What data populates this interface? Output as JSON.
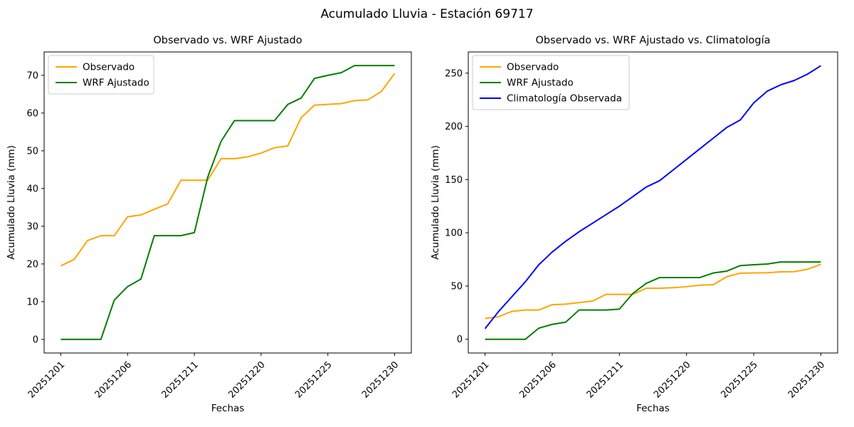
{
  "figure": {
    "title": "Acumulado Lluvia - Estación 69717",
    "background_color": "#ffffff",
    "text_color": "#000000"
  },
  "chart_data": [
    {
      "type": "line",
      "title": "Observado vs. WRF Ajustado",
      "xlabel": "Fechas",
      "ylabel": "Acumulado Lluvia (mm)",
      "grid": false,
      "legend_position": "upper left",
      "xlim": [
        -1.25,
        26.25
      ],
      "ylim": [
        -3.6,
        76.2
      ],
      "x_ticks": {
        "positions": [
          0,
          5,
          10,
          15,
          20,
          25
        ],
        "labels": [
          "20251201",
          "20251206",
          "20251211",
          "20251220",
          "20251225",
          "20251230"
        ],
        "rotation": 45
      },
      "y_ticks": [
        0,
        10,
        20,
        30,
        40,
        50,
        60,
        70
      ],
      "series": [
        {
          "name": "Observado",
          "color": "#ffa500",
          "values": [
            19.5,
            21.2,
            26.2,
            27.5,
            27.5,
            32.5,
            33.0,
            34.5,
            35.9,
            42.2,
            42.2,
            42.2,
            47.9,
            47.9,
            48.4,
            49.4,
            50.8,
            51.3,
            58.8,
            62.1,
            62.3,
            62.5,
            63.3,
            63.5,
            65.7,
            70.5
          ]
        },
        {
          "name": "WRF Ajustado",
          "color": "#008000",
          "values": [
            0,
            0,
            0,
            0,
            10.4,
            14.0,
            16.0,
            27.5,
            27.5,
            27.5,
            28.3,
            43.0,
            52.5,
            58.0,
            58.0,
            58.0,
            58.0,
            62.3,
            64.0,
            69.2,
            70.0,
            70.7,
            72.6,
            72.6,
            72.6,
            72.6
          ]
        }
      ]
    },
    {
      "type": "line",
      "title": "Observado vs. WRF Ajustado vs. Climatología",
      "xlabel": "Fechas",
      "ylabel": "Acumulado Lluvia (mm)",
      "grid": false,
      "legend_position": "upper left",
      "xlim": [
        -1.25,
        26.25
      ],
      "ylim": [
        -12.9,
        269.9
      ],
      "x_ticks": {
        "positions": [
          0,
          5,
          10,
          15,
          20,
          25
        ],
        "labels": [
          "20251201",
          "20251206",
          "20251211",
          "20251220",
          "20251225",
          "20251230"
        ],
        "rotation": 45
      },
      "y_ticks": [
        0,
        50,
        100,
        150,
        200,
        250
      ],
      "series": [
        {
          "name": "Observado",
          "color": "#ffa500",
          "values": [
            19.5,
            21.2,
            26.2,
            27.5,
            27.5,
            32.5,
            33.0,
            34.5,
            35.9,
            42.2,
            42.2,
            42.2,
            47.9,
            47.9,
            48.4,
            49.4,
            50.8,
            51.3,
            58.8,
            62.1,
            62.3,
            62.5,
            63.3,
            63.5,
            65.7,
            70.5
          ]
        },
        {
          "name": "WRF Ajustado",
          "color": "#008000",
          "values": [
            0,
            0,
            0,
            0,
            10.4,
            14.0,
            16.0,
            27.5,
            27.5,
            27.5,
            28.3,
            43.0,
            52.5,
            58.0,
            58.0,
            58.0,
            58.0,
            62.3,
            64.0,
            69.2,
            70.0,
            70.7,
            72.6,
            72.6,
            72.6,
            72.6
          ]
        },
        {
          "name": "Climatología Observada",
          "color": "#0000ff",
          "values": [
            10,
            26,
            40,
            54,
            70,
            82,
            92,
            101,
            109,
            117,
            125,
            134,
            143,
            149,
            159,
            169,
            179,
            189,
            199,
            206,
            222,
            233,
            239,
            243,
            249,
            257
          ]
        }
      ]
    }
  ]
}
